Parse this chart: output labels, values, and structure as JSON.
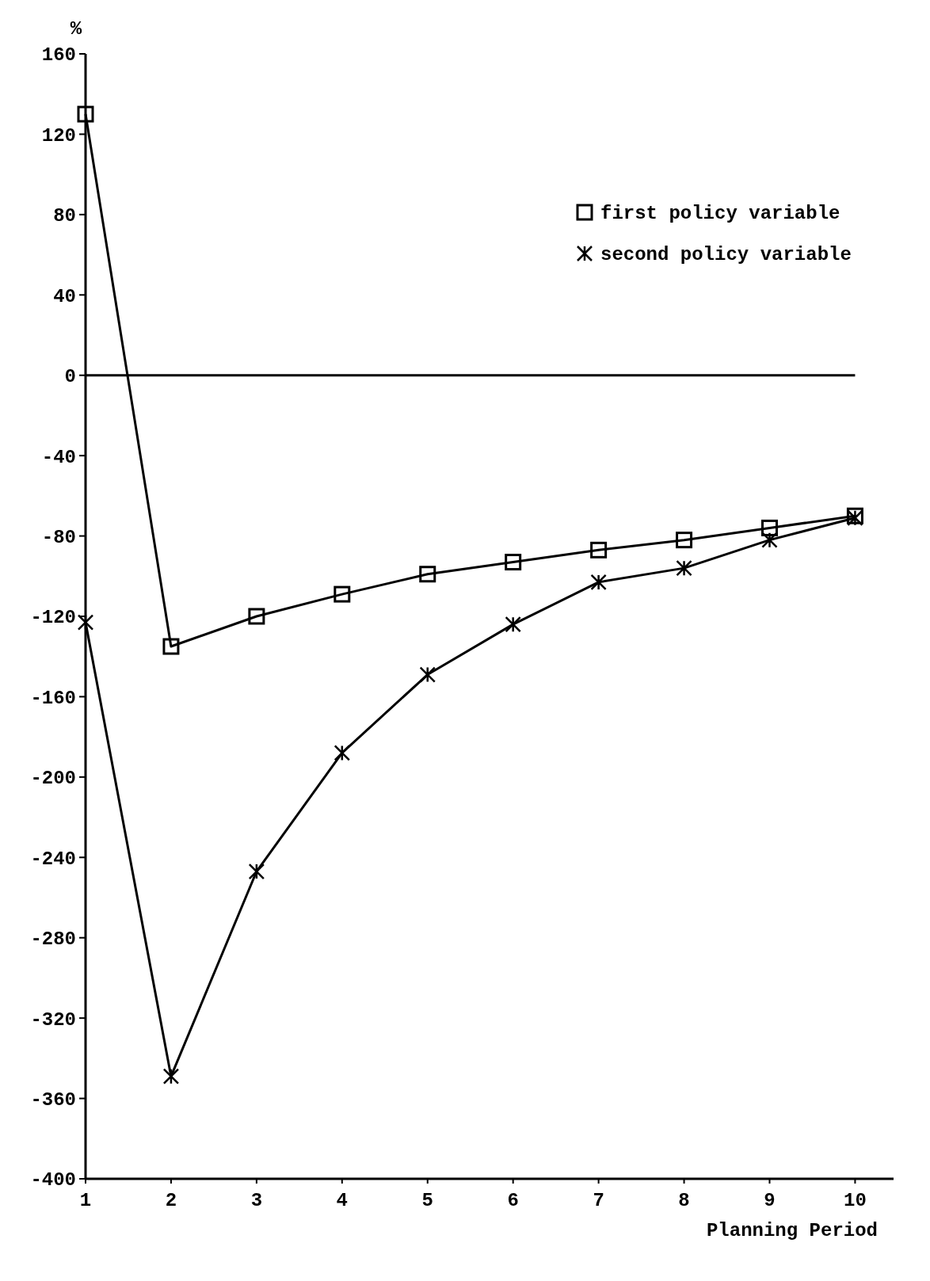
{
  "chart_data": {
    "type": "line",
    "xlabel": "Planning Period",
    "ylabel": "%",
    "x": [
      1,
      2,
      3,
      4,
      5,
      6,
      7,
      8,
      9,
      10
    ],
    "series": [
      {
        "name": "first policy variable",
        "color": "#000000",
        "marker": "square",
        "values": [
          130,
          -135,
          -120,
          -109,
          -99,
          -93,
          -87,
          -82,
          -76,
          -70
        ]
      },
      {
        "name": "second policy variable",
        "color": "#000000",
        "marker": "cross",
        "values": [
          -123,
          -349,
          -247,
          -188,
          -149,
          -124,
          -103,
          -96,
          -82,
          -71
        ]
      }
    ],
    "xlim": [
      1,
      10.45
    ],
    "xticks": [
      1,
      2,
      3,
      4,
      5,
      6,
      7,
      8,
      9,
      10
    ],
    "ylim": [
      -400,
      160
    ],
    "yticks": [
      160,
      120,
      80,
      40,
      0,
      -40,
      -80,
      -120,
      -160,
      -200,
      -240,
      -280,
      -320,
      -360,
      -400
    ],
    "ref_lines": [
      {
        "axis": "y",
        "value": 0,
        "color": "#000000"
      }
    ],
    "grid": false,
    "legend": "top right",
    "line_style": "solid"
  }
}
